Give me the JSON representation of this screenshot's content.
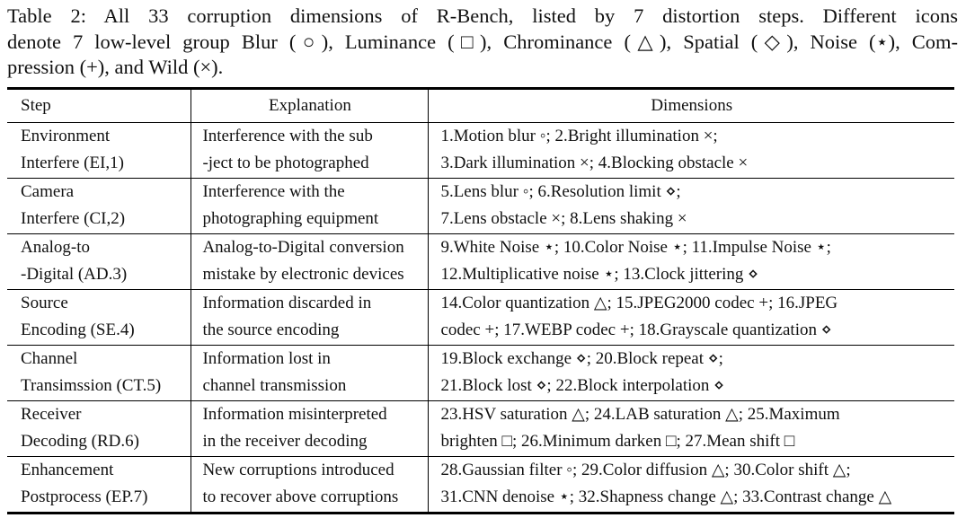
{
  "caption": {
    "line1": "Table 2: All 33 corruption dimensions of R-Bench, listed by 7 distortion steps. Different icons",
    "line2": "denote 7 low-level group Blur (○), Luminance (□), Chrominance (△), Spatial (◇), Noise (⋆), Com-",
    "line3": "pression (+), and Wild (×)."
  },
  "table": {
    "headers": [
      "Step",
      "Explanation",
      "Dimensions"
    ],
    "rows": [
      {
        "step": [
          "Environment",
          "Interfere (EI,1)"
        ],
        "explanation": [
          "Interference with the sub",
          "-ject to be photographed"
        ],
        "dimensions": [
          "1.Motion blur ◦; 2.Bright illumination ×;",
          "3.Dark illumination ×; 4.Blocking obstacle ×"
        ]
      },
      {
        "step": [
          "Camera",
          "Interfere (CI,2)"
        ],
        "explanation": [
          "Interference with the",
          "photographing equipment"
        ],
        "dimensions": [
          "5.Lens blur ◦; 6.Resolution limit ⋄;",
          "7.Lens obstacle ×; 8.Lens shaking ×"
        ]
      },
      {
        "step": [
          "Analog-to",
          "-Digital (AD.3)"
        ],
        "explanation": [
          "Analog-to-Digital conversion",
          "mistake by electronic devices"
        ],
        "dimensions": [
          "9.White Noise ⋆; 10.Color Noise ⋆; 11.Impulse Noise ⋆;",
          "12.Multiplicative noise ⋆; 13.Clock jittering ⋄"
        ]
      },
      {
        "step": [
          "Source",
          "Encoding (SE.4)"
        ],
        "explanation": [
          "Information discarded in",
          "the source encoding"
        ],
        "dimensions": [
          "14.Color quantization △; 15.JPEG2000 codec +; 16.JPEG",
          "codec +; 17.WEBP codec +; 18.Grayscale quantization ⋄"
        ]
      },
      {
        "step": [
          "Channel",
          "Transimssion (CT.5)"
        ],
        "explanation": [
          "Information lost in",
          "channel transmission"
        ],
        "dimensions": [
          "19.Block exchange ⋄; 20.Block repeat ⋄;",
          "21.Block lost ⋄; 22.Block interpolation ⋄"
        ]
      },
      {
        "step": [
          "Receiver",
          "Decoding (RD.6)"
        ],
        "explanation": [
          "Information misinterpreted",
          "in the receiver decoding"
        ],
        "dimensions": [
          "23.HSV saturation △; 24.LAB saturation △; 25.Maximum",
          "brighten □; 26.Minimum darken □; 27.Mean shift □"
        ]
      },
      {
        "step": [
          "Enhancement",
          "Postprocess (EP.7)"
        ],
        "explanation": [
          "New corruptions introduced",
          "to recover above corruptions"
        ],
        "dimensions": [
          "28.Gaussian filter ◦; 29.Color diffusion △; 30.Color shift △;",
          "31.CNN denoise ⋆; 32.Shapness change △; 33.Contrast change △"
        ]
      }
    ]
  }
}
